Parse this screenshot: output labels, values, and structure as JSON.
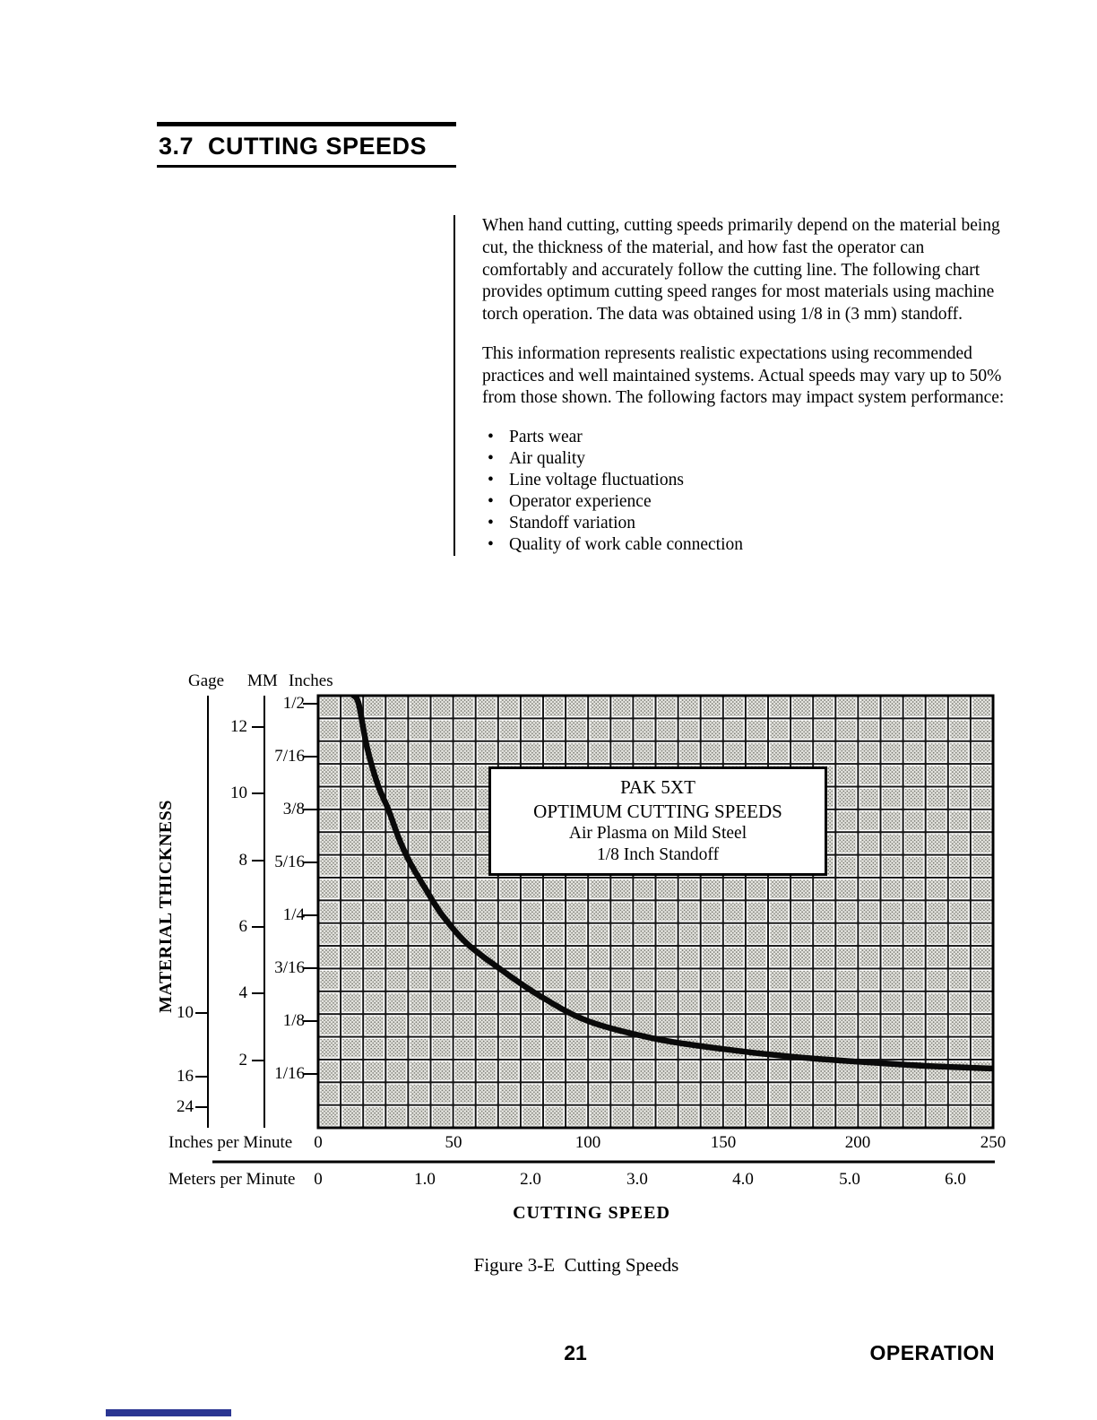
{
  "page": {
    "section_title": "3.7  CUTTING SPEEDS",
    "figure_caption": "Figure 3-E  Cutting Speeds",
    "page_number": "21",
    "footer_right": "OPERATION"
  },
  "colors": {
    "accent_bar": "#2b3692",
    "curve": "#0a0a0a"
  },
  "body": {
    "para1": "When hand cutting, cutting speeds primarily depend on the material being cut, the thickness of the material, and how fast the operator can comfortably and accurately follow the cutting line. The following chart provides optimum cutting speed ranges for most materials using machine torch operation. The data was obtained using 1/8 in (3 mm) standoff.",
    "para2": "This information represents realistic expectations using recommended practices and well maintained systems. Actual speeds may vary up to 50% from those shown. The following factors may impact system performance:",
    "bullets": [
      "Parts wear",
      "Air quality",
      "Line voltage fluctuations",
      "Operator experience",
      "Standoff variation",
      "Quality of work cable connection"
    ]
  },
  "chart": {
    "col_headers": {
      "gage": "Gage",
      "mm": "MM",
      "inches": "Inches"
    },
    "y_axis_title": "MATERIAL THICKNESS",
    "x_axis_title": "CUTTING SPEED",
    "inches_ticks": [
      "1/2",
      "7/16",
      "3/8",
      "5/16",
      "1/4",
      "3/16",
      "1/8",
      "1/16"
    ],
    "mm_ticks": [
      "12",
      "10",
      "8",
      "6",
      "4",
      "2"
    ],
    "gage_ticks": [
      "10",
      "16",
      "24"
    ],
    "ipm_label": "Inches per Minute",
    "ipm_ticks": [
      "0",
      "50",
      "100",
      "150",
      "200",
      "250"
    ],
    "mpm_label": "Meters per Minute",
    "mpm_ticks": [
      "0",
      "1.0",
      "2.0",
      "3.0",
      "4.0",
      "5.0",
      "6.0"
    ],
    "legend": {
      "line1": "PAK 5XT",
      "line2": "OPTIMUM CUTTING SPEEDS",
      "line3": "Air Plasma on Mild Steel",
      "line4": "1/8 Inch Standoff"
    }
  },
  "chart_data": {
    "type": "line",
    "title": "PAK 5XT Optimum Cutting Speeds, Air Plasma on Mild Steel, 1/8 Inch Standoff",
    "xlabel": "Cutting Speed (Inches per Minute)",
    "ylabel": "Material Thickness (Inches)",
    "xlim": [
      0,
      250
    ],
    "ylim": [
      0.0625,
      0.5
    ],
    "x_secondary_axis": {
      "label": "Meters per Minute",
      "range": [
        0,
        6.0
      ]
    },
    "grid": true,
    "series": [
      {
        "name": "Optimum cutting speed",
        "points": [
          [
            13,
            0.51
          ],
          [
            15,
            0.5
          ],
          [
            18,
            0.45
          ],
          [
            22,
            0.405
          ],
          [
            26,
            0.375
          ],
          [
            30,
            0.34
          ],
          [
            34,
            0.3125
          ],
          [
            40,
            0.28
          ],
          [
            46,
            0.25
          ],
          [
            55,
            0.217
          ],
          [
            67,
            0.1875
          ],
          [
            82,
            0.155
          ],
          [
            100,
            0.125
          ],
          [
            125,
            0.104
          ],
          [
            150,
            0.092
          ],
          [
            175,
            0.083
          ],
          [
            200,
            0.077
          ],
          [
            225,
            0.072
          ],
          [
            250,
            0.069
          ]
        ]
      }
    ]
  }
}
